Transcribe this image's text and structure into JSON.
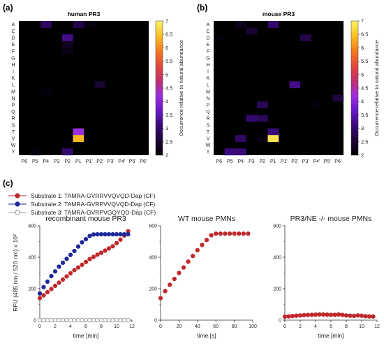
{
  "panels": {
    "a": "(a)",
    "b": "(b)",
    "c": "(c)"
  },
  "colormap": {
    "stops": [
      "#000000",
      "#1c0638",
      "#3a0a7a",
      "#6a18c8",
      "#9d2fde",
      "#c2306b",
      "#e3483a",
      "#f57a1c",
      "#fbbf24",
      "#fff566"
    ]
  },
  "chart_data": [
    {
      "type": "heatmap",
      "title": "human PR3",
      "rows": [
        "A",
        "C",
        "D",
        "E",
        "F",
        "G",
        "H",
        "I",
        "K",
        "L",
        "M",
        "N",
        "P",
        "Q",
        "R",
        "S",
        "T",
        "V",
        "W",
        "Y"
      ],
      "cols": [
        "P6",
        "P5",
        "P4",
        "P3",
        "P2",
        "P1",
        "P1'",
        "P2'",
        "P3'",
        "P4'",
        "P5'",
        "P6'"
      ],
      "cells": [
        {
          "row": "A",
          "col": "P4",
          "value": 2.9
        },
        {
          "row": "A",
          "col": "P1",
          "value": 2.7
        },
        {
          "row": "A",
          "col": "P1'",
          "value": 2.2
        },
        {
          "row": "D",
          "col": "P2",
          "value": 3.2
        },
        {
          "row": "E",
          "col": "P2",
          "value": 2.3
        },
        {
          "row": "F",
          "col": "P2",
          "value": 2.2
        },
        {
          "row": "L",
          "col": "P2'",
          "value": 2.5
        },
        {
          "row": "M",
          "col": "P4",
          "value": 2.1
        },
        {
          "row": "T",
          "col": "P1",
          "value": 4.2
        },
        {
          "row": "V",
          "col": "P1",
          "value": 6.4
        },
        {
          "row": "W",
          "col": "P2",
          "value": 2.1
        },
        {
          "row": "Y",
          "col": "P5",
          "value": 2.1
        },
        {
          "row": "Y",
          "col": "P2",
          "value": 3.0
        }
      ],
      "colorbar": {
        "min": 2,
        "max": 7,
        "ticks": [
          "2",
          "2.5",
          "3",
          "3.5",
          "4",
          "4.5",
          "5",
          "5.5",
          "6",
          "6.5",
          "7"
        ],
        "label": "Occurrence relative to natural abundance"
      }
    },
    {
      "type": "heatmap",
      "title": "mouse PR3",
      "rows": [
        "A",
        "C",
        "D",
        "E",
        "F",
        "G",
        "H",
        "I",
        "K",
        "L",
        "M",
        "N",
        "P",
        "Q",
        "R",
        "S",
        "T",
        "V",
        "W",
        "Y"
      ],
      "cols": [
        "P6",
        "P5",
        "P4",
        "P3",
        "P2",
        "P1",
        "P1'",
        "P2'",
        "P3'",
        "P4'",
        "P5'",
        "P6'"
      ],
      "cells": [
        {
          "row": "A",
          "col": "P4",
          "value": 2.3
        },
        {
          "row": "A",
          "col": "P1",
          "value": 3.0
        },
        {
          "row": "C",
          "col": "P3",
          "value": 2.5
        },
        {
          "row": "D",
          "col": "P6",
          "value": 2.1
        },
        {
          "row": "D",
          "col": "P3'",
          "value": 2.7
        },
        {
          "row": "L",
          "col": "P2'",
          "value": 3.2
        },
        {
          "row": "N",
          "col": "P6'",
          "value": 2.6
        },
        {
          "row": "P",
          "col": "P2",
          "value": 2.8
        },
        {
          "row": "P",
          "col": "P4'",
          "value": 2.1
        },
        {
          "row": "R",
          "col": "P3",
          "value": 3.0
        },
        {
          "row": "R",
          "col": "P2",
          "value": 2.8
        },
        {
          "row": "T",
          "col": "P1",
          "value": 3.1
        },
        {
          "row": "V",
          "col": "P4",
          "value": 2.9
        },
        {
          "row": "V",
          "col": "P2",
          "value": 2.2
        },
        {
          "row": "V",
          "col": "P1",
          "value": 6.8
        },
        {
          "row": "Y",
          "col": "P5",
          "value": 3.1
        },
        {
          "row": "Y",
          "col": "P4",
          "value": 3.1
        }
      ],
      "colorbar": {
        "min": 2,
        "max": 7,
        "ticks": [
          "2",
          "2.5",
          "3",
          "3.5",
          "4",
          "4.5",
          "5",
          "5.5",
          "6",
          "6.5",
          "7"
        ],
        "label": "Occurrence relative to natural abundance"
      }
    },
    {
      "type": "scatter",
      "title": "recombinant mouse PR3",
      "xlabel": "time [min]",
      "ylabel": "RFU (485 nm / 520 nm) x 10²",
      "xlim": [
        0,
        12
      ],
      "ylim": [
        0,
        600
      ],
      "xticks": [
        "0",
        "2",
        "4",
        "6",
        "8",
        "10",
        "12"
      ],
      "yticks": [
        "0",
        "200",
        "400",
        "600"
      ],
      "series": [
        {
          "name": "Substrate 1: TAMRA-GVRRVVQVQD-Dap (CF)",
          "color": "#c0282a",
          "filled": true,
          "x": [
            0,
            0.5,
            1,
            1.5,
            2,
            2.5,
            3,
            3.5,
            4,
            4.5,
            5,
            5.5,
            6,
            6.5,
            7,
            7.5,
            8,
            8.5,
            9,
            9.5,
            10,
            10.5,
            11,
            11.5
          ],
          "y": [
            140,
            158,
            178,
            198,
            218,
            238,
            258,
            278,
            298,
            318,
            335,
            352,
            370,
            388,
            402,
            416,
            428,
            442,
            456,
            470,
            490,
            512,
            538,
            565
          ]
        },
        {
          "name": "Substrate 2: TAMRA-GVRPVVQVQD-Dap (CF)",
          "color": "#1e2a9a",
          "filled": true,
          "x": [
            0,
            0.5,
            1,
            1.5,
            2,
            2.5,
            3,
            3.5,
            4,
            4.5,
            5,
            5.5,
            6,
            6.5,
            7,
            7.5,
            8,
            8.5,
            9,
            9.5,
            10,
            10.5,
            11,
            11.5
          ],
          "y": [
            170,
            210,
            245,
            280,
            310,
            340,
            365,
            390,
            415,
            440,
            468,
            495,
            515,
            535,
            545,
            546,
            546,
            546,
            546,
            546,
            546,
            546,
            546,
            546
          ]
        },
        {
          "name": "Substrate 3: TAMRA-GVRPVGQYQD-Dap (CF)",
          "color": "#9a9a9a",
          "filled": false,
          "x": [
            0,
            0.5,
            1,
            1.5,
            2,
            2.5,
            3,
            3.5,
            4,
            4.5,
            5,
            5.5,
            6,
            6.5,
            7,
            7.5,
            8,
            8.5,
            9,
            9.5,
            10,
            10.5,
            11,
            11.5
          ],
          "y": [
            0,
            0,
            0,
            0,
            0,
            0,
            0,
            0,
            0,
            0,
            0,
            0,
            0,
            0,
            0,
            0,
            0,
            0,
            0,
            0,
            0,
            0,
            0,
            0
          ]
        }
      ]
    },
    {
      "type": "scatter",
      "title": "WT mouse PMNs",
      "xlabel": "time [s]",
      "ylabel": "",
      "xlim": [
        0,
        100
      ],
      "ylim": [
        0,
        600
      ],
      "xticks": [
        "0",
        "20",
        "40",
        "60",
        "80",
        "100"
      ],
      "yticks": [
        "0",
        "200",
        "400",
        "600"
      ],
      "series": [
        {
          "name": "Substrate 1: TAMRA-GVRRVVQVQD-Dap (CF)",
          "color": "#c0282a",
          "filled": true,
          "x": [
            0,
            5,
            10,
            15,
            20,
            25,
            30,
            35,
            40,
            45,
            50,
            55,
            60,
            65,
            70,
            75,
            80,
            85,
            90,
            95
          ],
          "y": [
            140,
            185,
            225,
            262,
            300,
            335,
            372,
            408,
            445,
            478,
            510,
            540,
            550,
            550,
            550,
            550,
            550,
            550,
            550,
            550
          ]
        }
      ]
    },
    {
      "type": "scatter",
      "title": "PR3/NE -/- mouse PMNs",
      "xlabel": "time [min]",
      "ylabel": "",
      "xlim": [
        0,
        12
      ],
      "ylim": [
        0,
        600
      ],
      "xticks": [
        "0",
        "2",
        "4",
        "6",
        "8",
        "10",
        "12"
      ],
      "yticks": [
        "0",
        "200",
        "400",
        "600"
      ],
      "series": [
        {
          "name": "Substrate 1: TAMRA-GVRRVVQVQD-Dap (CF)",
          "color": "#c0282a",
          "filled": true,
          "x": [
            0,
            0.5,
            1,
            1.5,
            2,
            2.5,
            3,
            3.5,
            4,
            4.5,
            5,
            5.5,
            6,
            6.5,
            7,
            7.5,
            8,
            8.5,
            9,
            9.5,
            10,
            10.5,
            11,
            11.5
          ],
          "y": [
            22,
            24,
            26,
            28,
            30,
            32,
            33,
            34,
            35,
            36,
            36,
            35,
            34,
            34,
            36,
            33,
            30,
            28,
            27,
            30,
            28,
            25,
            24,
            23
          ]
        }
      ]
    }
  ]
}
